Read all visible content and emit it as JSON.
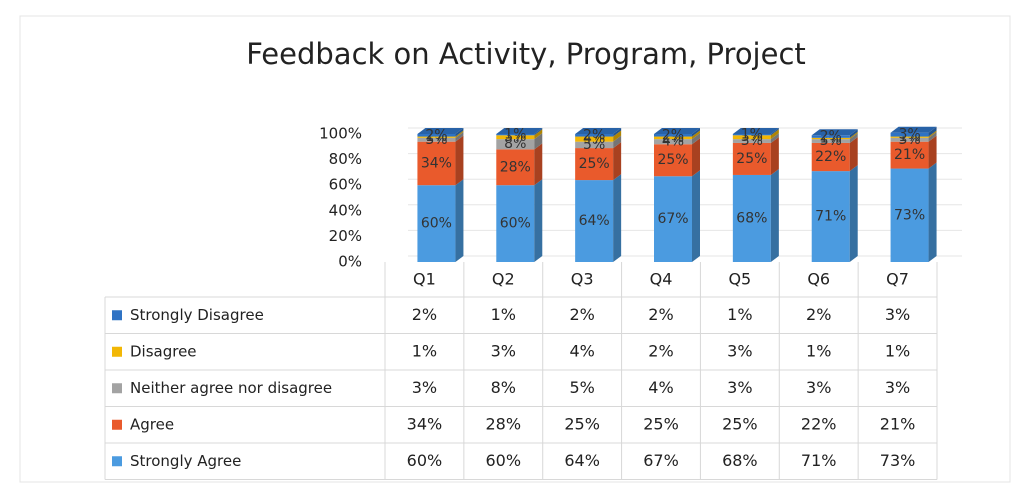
{
  "chart_data": {
    "type": "bar",
    "stacked": true,
    "title": "Feedback on Activity, Program, Project",
    "categories": [
      "Q1",
      "Q2",
      "Q3",
      "Q4",
      "Q5",
      "Q6",
      "Q7"
    ],
    "series": [
      {
        "name": "Strongly Disagree",
        "color": "#2f73c4",
        "values": [
          2,
          1,
          2,
          2,
          1,
          2,
          3
        ],
        "value_labels": [
          "2%",
          "1%",
          "2%",
          "2%",
          "1%",
          "2%",
          "3%"
        ]
      },
      {
        "name": "Disagree",
        "color": "#f2b705",
        "values": [
          1,
          3,
          4,
          2,
          3,
          1,
          1
        ],
        "value_labels": [
          "1%",
          "3%",
          "4%",
          "2%",
          "3%",
          "1%",
          "1%"
        ]
      },
      {
        "name": "Neither agree nor disagree",
        "color": "#a3a3a3",
        "values": [
          3,
          8,
          5,
          4,
          3,
          3,
          3
        ],
        "value_labels": [
          "3%",
          "8%",
          "5%",
          "4%",
          "3%",
          "3%",
          "3%"
        ]
      },
      {
        "name": "Agree",
        "color": "#e95a2c",
        "values": [
          34,
          28,
          25,
          25,
          25,
          22,
          21
        ],
        "value_labels": [
          "34%",
          "28%",
          "25%",
          "25%",
          "25%",
          "22%",
          "21%"
        ]
      },
      {
        "name": "Strongly Agree",
        "color": "#4b9be0",
        "values": [
          60,
          60,
          64,
          67,
          68,
          71,
          73
        ],
        "value_labels": [
          "60%",
          "60%",
          "64%",
          "67%",
          "68%",
          "71%",
          "73%"
        ]
      }
    ],
    "ylim": [
      0,
      100
    ],
    "yticks": [
      {
        "value": 0,
        "label": "0%"
      },
      {
        "value": 20,
        "label": "20%"
      },
      {
        "value": 40,
        "label": "40%"
      },
      {
        "value": 60,
        "label": "60%"
      },
      {
        "value": 80,
        "label": "80%"
      },
      {
        "value": 100,
        "label": "100%"
      }
    ],
    "grid": true,
    "data_table": true
  }
}
